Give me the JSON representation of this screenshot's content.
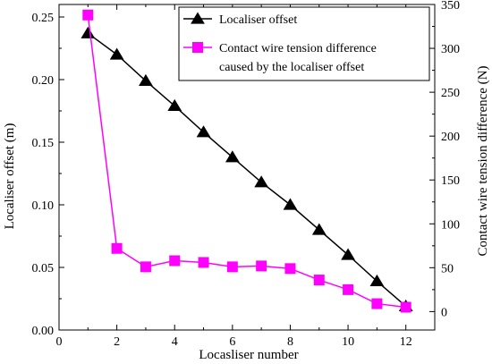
{
  "chart_data": {
    "type": "line",
    "title": "",
    "xlabel": "Locasliser number",
    "ylabel": "Localiser offset (m)",
    "ylabel_right": "Contact wire tension difference (N)",
    "x": [
      1,
      2,
      3,
      4,
      5,
      6,
      7,
      8,
      9,
      10,
      11,
      12
    ],
    "xlim": [
      0,
      13
    ],
    "ylim": [
      0,
      0.26
    ],
    "ylim_right": [
      -21,
      350
    ],
    "x_ticks": [
      "0",
      "2",
      "4",
      "6",
      "8",
      "10",
      "12"
    ],
    "y_ticks": [
      "0.00",
      "0.05",
      "0.10",
      "0.15",
      "0.20",
      "0.25"
    ],
    "y_ticks_right": [
      "0",
      "50",
      "100",
      "150",
      "200",
      "250",
      "300",
      "350"
    ],
    "legend_position": "top-right",
    "grid": false,
    "series": [
      {
        "name": "Localiser offset",
        "axis": "left",
        "marker": "triangle",
        "color": "#000000",
        "values": [
          0.237,
          0.22,
          0.199,
          0.179,
          0.158,
          0.138,
          0.118,
          0.1,
          0.08,
          0.06,
          0.039,
          0.019
        ]
      },
      {
        "name": "Contact wire tension difference caused by the localiser offset",
        "name_lines": [
          "Contact wire tension difference",
          "caused by the localiser offset"
        ],
        "axis": "right",
        "marker": "square",
        "color": "#ff00ff",
        "values": [
          338,
          72,
          51,
          58,
          56,
          51,
          52,
          49,
          36,
          25,
          9,
          5
        ]
      }
    ]
  }
}
